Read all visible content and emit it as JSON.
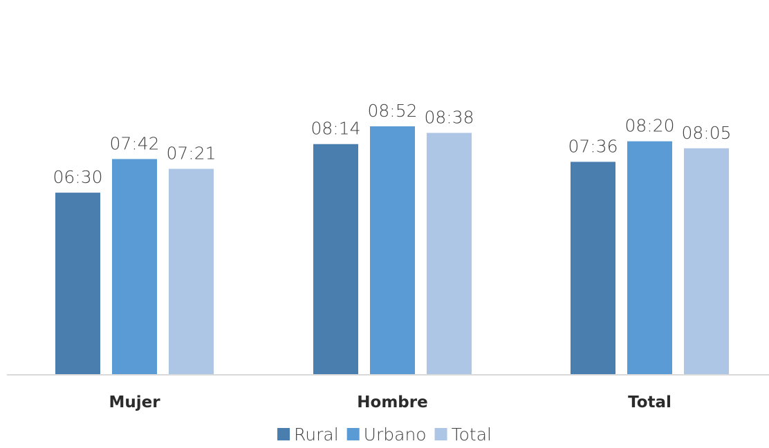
{
  "chart_data": {
    "type": "bar",
    "categories": [
      "Mujer",
      "Hombre",
      "Total"
    ],
    "series": [
      {
        "name": "Rural",
        "color": "#4a7eaf",
        "values": [
          6.5,
          8.2333,
          7.6
        ],
        "labels": [
          "06:30",
          "08:14",
          "07:36"
        ]
      },
      {
        "name": "Urbano",
        "color": "#5a9bd6",
        "values": [
          7.7,
          8.8667,
          8.3333
        ],
        "labels": [
          "07:42",
          "08:52",
          "08:20"
        ]
      },
      {
        "name": "Total",
        "color": "#aec6e6",
        "values": [
          7.35,
          8.6333,
          8.0833
        ],
        "labels": [
          "07:21",
          "08:38",
          "08:05"
        ]
      }
    ],
    "ylim": [
      0,
      10
    ],
    "grid": false,
    "legend_position": "bottom",
    "xlabel": "",
    "ylabel": ""
  }
}
